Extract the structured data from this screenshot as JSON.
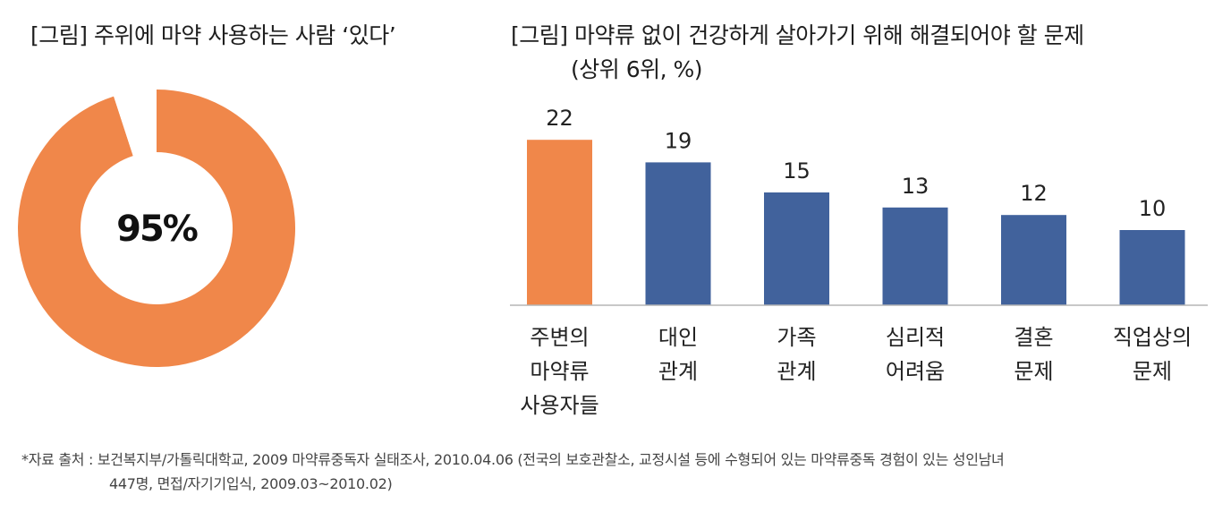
{
  "chart_data": [
    {
      "type": "pie",
      "style": "donut",
      "title": "[그림] 주위에 마약 사용하는 사람 ‘있다’",
      "center_label": "95%",
      "slices": [
        {
          "value": 95,
          "color": "#F0874A"
        },
        {
          "value": 5,
          "color": "#FFFFFF"
        }
      ]
    },
    {
      "type": "bar",
      "title": "[그림] 마약류 없이 건강하게 살아가기 위해 해결되어야 할 문제",
      "subtitle": "(상위 6위, %)",
      "categories": [
        [
          "주변의",
          "마약류",
          "사용자들"
        ],
        [
          "대인",
          "관계"
        ],
        [
          "가족",
          "관계"
        ],
        [
          "심리적",
          "어려움"
        ],
        [
          "결혼",
          "문제"
        ],
        [
          "직업상의",
          "문제"
        ]
      ],
      "values": [
        22,
        19,
        15,
        13,
        12,
        10
      ],
      "colors": [
        "#F0874A",
        "#41629C",
        "#41629C",
        "#41629C",
        "#41629C",
        "#41629C"
      ],
      "ylim": [
        0,
        25
      ],
      "grid": false,
      "legend": "none"
    }
  ],
  "source": {
    "line1": "*자료 출처 : 보건복지부/가톨릭대학교, 2009 마약류중독자 실태조사, 2010.04.06 (전국의 보호관찰소, 교정시설 등에 수형되어 있는 마약류중독 경험이 있는 성인남녀",
    "line2": "447명, 면접/자기기입식, 2009.03~2010.02)"
  }
}
